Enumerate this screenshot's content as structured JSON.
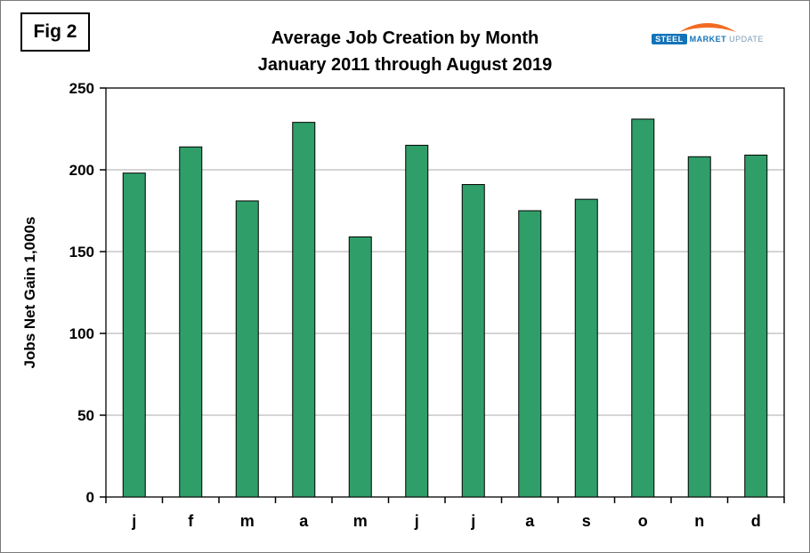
{
  "fig_label": "Fig 2",
  "logo": {
    "steel": "STEEL",
    "market": "MARKET",
    "update": "UPDATE",
    "swoosh_color": "#f26a21"
  },
  "chart_data": {
    "type": "bar",
    "title": "Average Job Creation by Month",
    "subtitle": "January 2011 through August 2019",
    "categories": [
      "j",
      "f",
      "m",
      "a",
      "m",
      "j",
      "j",
      "a",
      "s",
      "o",
      "n",
      "d"
    ],
    "values": [
      198,
      214,
      181,
      229,
      159,
      215,
      191,
      175,
      182,
      231,
      208,
      209
    ],
    "xlabel": "",
    "ylabel": "Jobs Net Gain 1,000s",
    "ylim": [
      0,
      250
    ],
    "yticks": [
      0,
      50,
      100,
      150,
      200,
      250
    ],
    "grid": true,
    "legend": "none",
    "bar_color": "#2f9e68",
    "bar_border_color": "#000000",
    "gridline_color": "#ababab",
    "axis_color": "#000000"
  }
}
